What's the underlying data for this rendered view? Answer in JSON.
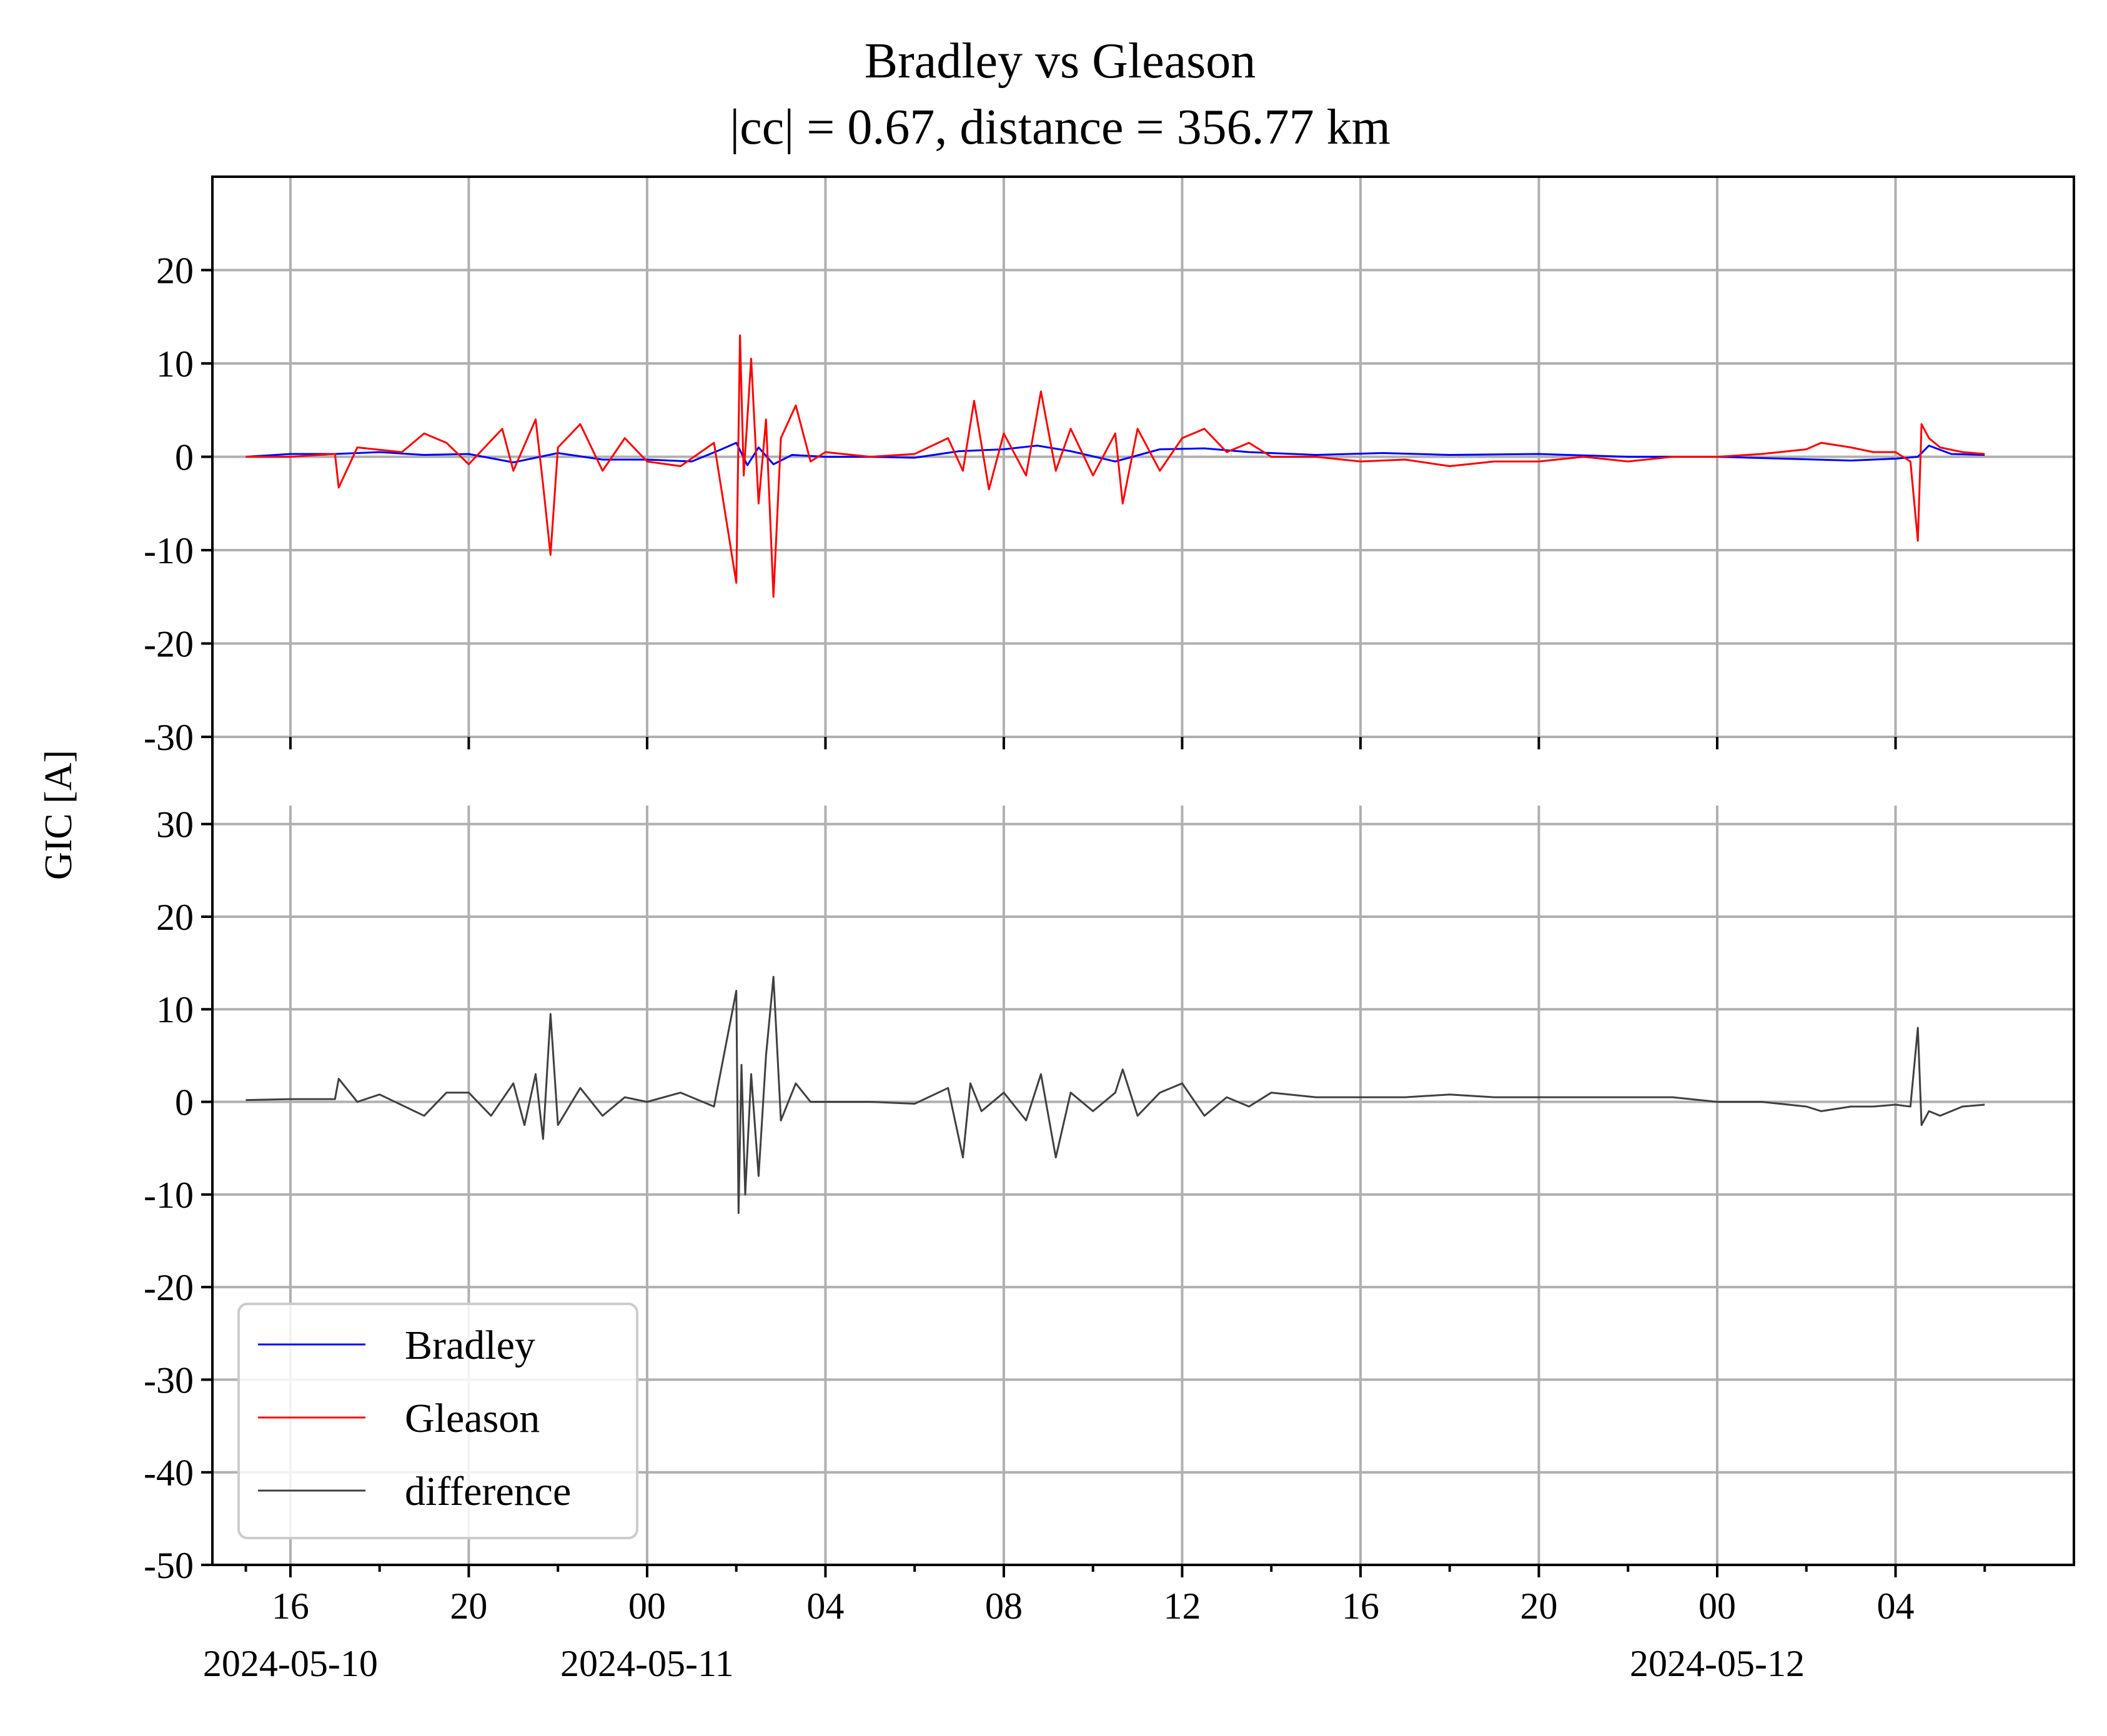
{
  "chart_data": [
    {
      "type": "line",
      "panel": "top",
      "title": "Bradley vs Gleason",
      "subtitle": "|cc| = 0.67, distance = 356.77 km",
      "ylabel": "GIC [A]",
      "ylim": [
        -30,
        30
      ],
      "yticks": [
        20,
        10,
        0,
        -10,
        -20,
        -30
      ],
      "ytick_labels": [
        "20",
        "10",
        "0",
        "-10",
        "-20",
        "-30"
      ],
      "grid": true,
      "series": [
        {
          "name": "Bradley",
          "color": "#0000ff",
          "x": [
            "2024-05-10T15:00",
            "2024-05-10T16:00",
            "2024-05-10T17:00",
            "2024-05-10T18:00",
            "2024-05-10T19:00",
            "2024-05-10T20:00",
            "2024-05-10T21:00",
            "2024-05-10T22:00",
            "2024-05-10T23:00",
            "2024-05-11T00:00",
            "2024-05-11T01:00",
            "2024-05-11T01:40",
            "2024-05-11T02:00",
            "2024-05-11T02:15",
            "2024-05-11T02:30",
            "2024-05-11T02:50",
            "2024-05-11T03:15",
            "2024-05-11T04:00",
            "2024-05-11T05:00",
            "2024-05-11T06:00",
            "2024-05-11T07:00",
            "2024-05-11T08:00",
            "2024-05-11T08:45",
            "2024-05-11T09:30",
            "2024-05-11T10:30",
            "2024-05-11T11:30",
            "2024-05-11T12:30",
            "2024-05-11T13:30",
            "2024-05-11T15:00",
            "2024-05-11T16:30",
            "2024-05-11T18:00",
            "2024-05-11T20:00",
            "2024-05-11T22:00",
            "2024-05-12T00:00",
            "2024-05-12T01:30",
            "2024-05-12T03:00",
            "2024-05-12T04:00",
            "2024-05-12T04:30",
            "2024-05-12T04:45",
            "2024-05-12T05:15",
            "2024-05-12T06:00"
          ],
          "values": [
            0.0,
            0.3,
            0.3,
            0.5,
            0.2,
            0.3,
            -0.6,
            0.4,
            -0.3,
            -0.3,
            -0.5,
            0.8,
            1.5,
            -0.9,
            1.0,
            -0.8,
            0.2,
            0.0,
            0.0,
            -0.1,
            0.6,
            0.8,
            1.2,
            0.6,
            -0.5,
            0.8,
            0.9,
            0.5,
            0.2,
            0.4,
            0.2,
            0.3,
            0.0,
            0.0,
            -0.2,
            -0.4,
            -0.2,
            0.0,
            1.2,
            0.3,
            0.2
          ]
        },
        {
          "name": "Gleason",
          "color": "#ff0000",
          "x": [
            "2024-05-10T15:00",
            "2024-05-10T16:00",
            "2024-05-10T17:00",
            "2024-05-10T17:05",
            "2024-05-10T17:30",
            "2024-05-10T18:30",
            "2024-05-10T19:00",
            "2024-05-10T19:30",
            "2024-05-10T20:00",
            "2024-05-10T20:45",
            "2024-05-10T21:00",
            "2024-05-10T21:30",
            "2024-05-10T21:40",
            "2024-05-10T21:50",
            "2024-05-10T22:00",
            "2024-05-10T22:30",
            "2024-05-10T23:00",
            "2024-05-10T23:30",
            "2024-05-11T00:00",
            "2024-05-11T00:45",
            "2024-05-11T01:30",
            "2024-05-11T02:00",
            "2024-05-11T02:05",
            "2024-05-11T02:10",
            "2024-05-11T02:20",
            "2024-05-11T02:30",
            "2024-05-11T02:40",
            "2024-05-11T02:50",
            "2024-05-11T03:00",
            "2024-05-11T03:20",
            "2024-05-11T03:40",
            "2024-05-11T04:00",
            "2024-05-11T05:00",
            "2024-05-11T06:00",
            "2024-05-11T06:45",
            "2024-05-11T07:05",
            "2024-05-11T07:20",
            "2024-05-11T07:40",
            "2024-05-11T08:00",
            "2024-05-11T08:30",
            "2024-05-11T08:50",
            "2024-05-11T09:10",
            "2024-05-11T09:30",
            "2024-05-11T10:00",
            "2024-05-11T10:30",
            "2024-05-11T10:40",
            "2024-05-11T11:00",
            "2024-05-11T11:30",
            "2024-05-11T12:00",
            "2024-05-11T12:30",
            "2024-05-11T13:00",
            "2024-05-11T13:30",
            "2024-05-11T14:00",
            "2024-05-11T15:00",
            "2024-05-11T16:00",
            "2024-05-11T17:00",
            "2024-05-11T18:00",
            "2024-05-11T19:00",
            "2024-05-11T20:00",
            "2024-05-11T21:00",
            "2024-05-11T22:00",
            "2024-05-11T23:00",
            "2024-05-12T00:00",
            "2024-05-12T01:00",
            "2024-05-12T02:00",
            "2024-05-12T02:20",
            "2024-05-12T03:00",
            "2024-05-12T03:30",
            "2024-05-12T04:00",
            "2024-05-12T04:20",
            "2024-05-12T04:30",
            "2024-05-12T04:35",
            "2024-05-12T04:45",
            "2024-05-12T05:00",
            "2024-05-12T05:30",
            "2024-05-12T06:00"
          ],
          "values": [
            0.0,
            0.0,
            0.3,
            -3.3,
            1.0,
            0.5,
            2.5,
            1.5,
            -0.8,
            3.0,
            -1.5,
            4.0,
            -3.0,
            -10.5,
            1.0,
            3.5,
            -1.5,
            2.0,
            -0.5,
            -1.0,
            1.5,
            -13.5,
            13.0,
            -2.0,
            10.5,
            -5.0,
            4.0,
            -15.0,
            2.0,
            5.5,
            -0.5,
            0.5,
            0.0,
            0.3,
            2.0,
            -1.5,
            6.0,
            -3.5,
            2.5,
            -2.0,
            7.0,
            -1.5,
            3.0,
            -2.0,
            2.5,
            -5.0,
            3.0,
            -1.5,
            2.0,
            3.0,
            0.5,
            1.5,
            0.0,
            0.0,
            -0.5,
            -0.3,
            -1.0,
            -0.5,
            -0.5,
            0.0,
            -0.5,
            0.0,
            0.0,
            0.3,
            0.8,
            1.5,
            1.0,
            0.5,
            0.5,
            -0.5,
            -9.0,
            3.5,
            2.0,
            1.0,
            0.5,
            0.3
          ]
        }
      ]
    },
    {
      "type": "line",
      "panel": "bottom",
      "ylim": [
        -50,
        32
      ],
      "yticks": [
        30,
        20,
        10,
        0,
        -10,
        -20,
        -30,
        -40,
        -50
      ],
      "ytick_labels": [
        "30",
        "20",
        "10",
        "0",
        "-10",
        "-20",
        "-30",
        "-40",
        "-50"
      ],
      "grid": true,
      "legend_position": "lower-left",
      "series": [
        {
          "name": "difference",
          "color": "#404040",
          "x": [
            "2024-05-10T15:00",
            "2024-05-10T16:00",
            "2024-05-10T17:00",
            "2024-05-10T17:05",
            "2024-05-10T17:30",
            "2024-05-10T18:00",
            "2024-05-10T19:00",
            "2024-05-10T19:30",
            "2024-05-10T20:00",
            "2024-05-10T20:30",
            "2024-05-10T21:00",
            "2024-05-10T21:15",
            "2024-05-10T21:30",
            "2024-05-10T21:40",
            "2024-05-10T21:50",
            "2024-05-10T22:00",
            "2024-05-10T22:30",
            "2024-05-10T23:00",
            "2024-05-10T23:30",
            "2024-05-11T00:00",
            "2024-05-11T00:45",
            "2024-05-11T01:30",
            "2024-05-11T02:00",
            "2024-05-11T02:03",
            "2024-05-11T02:07",
            "2024-05-11T02:12",
            "2024-05-11T02:20",
            "2024-05-11T02:30",
            "2024-05-11T02:40",
            "2024-05-11T02:50",
            "2024-05-11T03:00",
            "2024-05-11T03:20",
            "2024-05-11T03:40",
            "2024-05-11T04:00",
            "2024-05-11T05:00",
            "2024-05-11T06:00",
            "2024-05-11T06:45",
            "2024-05-11T07:05",
            "2024-05-11T07:15",
            "2024-05-11T07:30",
            "2024-05-11T08:00",
            "2024-05-11T08:30",
            "2024-05-11T08:50",
            "2024-05-11T09:10",
            "2024-05-11T09:30",
            "2024-05-11T10:00",
            "2024-05-11T10:30",
            "2024-05-11T10:40",
            "2024-05-11T11:00",
            "2024-05-11T11:30",
            "2024-05-11T12:00",
            "2024-05-11T12:30",
            "2024-05-11T13:00",
            "2024-05-11T13:30",
            "2024-05-11T14:00",
            "2024-05-11T15:00",
            "2024-05-11T16:00",
            "2024-05-11T17:00",
            "2024-05-11T18:00",
            "2024-05-11T19:00",
            "2024-05-11T20:00",
            "2024-05-11T21:00",
            "2024-05-11T22:00",
            "2024-05-11T23:00",
            "2024-05-12T00:00",
            "2024-05-12T01:00",
            "2024-05-12T02:00",
            "2024-05-12T02:20",
            "2024-05-12T03:00",
            "2024-05-12T03:30",
            "2024-05-12T04:00",
            "2024-05-12T04:20",
            "2024-05-12T04:30",
            "2024-05-12T04:35",
            "2024-05-12T04:45",
            "2024-05-12T05:00",
            "2024-05-12T05:30",
            "2024-05-12T06:00"
          ],
          "values": [
            0.2,
            0.3,
            0.3,
            2.5,
            0.0,
            0.8,
            -1.5,
            1.0,
            1.0,
            -1.5,
            2.0,
            -2.5,
            3.0,
            -4.0,
            9.5,
            -2.5,
            1.5,
            -1.5,
            0.5,
            0.0,
            1.0,
            -0.5,
            12.0,
            -12.0,
            4.0,
            -10.0,
            3.0,
            -8.0,
            5.0,
            13.5,
            -2.0,
            2.0,
            0.0,
            0.0,
            0.0,
            -0.2,
            1.5,
            -6.0,
            2.0,
            -1.0,
            1.0,
            -2.0,
            3.0,
            -6.0,
            1.0,
            -1.0,
            1.0,
            3.5,
            -1.5,
            1.0,
            2.0,
            -1.5,
            0.5,
            -0.5,
            1.0,
            0.5,
            0.5,
            0.5,
            0.8,
            0.5,
            0.5,
            0.5,
            0.5,
            0.5,
            0.0,
            0.0,
            -0.5,
            -1.0,
            -0.5,
            -0.5,
            -0.3,
            -0.5,
            8.0,
            -2.5,
            -1.0,
            -1.5,
            -0.5,
            -0.3
          ]
        }
      ]
    }
  ],
  "xaxis": {
    "start": "2024-05-10T14:15",
    "end": "2024-05-12T08:00",
    "ticks": [
      {
        "t": "2024-05-10T16:00",
        "label": "16"
      },
      {
        "t": "2024-05-10T20:00",
        "label": "20"
      },
      {
        "t": "2024-05-11T00:00",
        "label": "00"
      },
      {
        "t": "2024-05-11T04:00",
        "label": "04"
      },
      {
        "t": "2024-05-11T08:00",
        "label": "08"
      },
      {
        "t": "2024-05-11T12:00",
        "label": "12"
      },
      {
        "t": "2024-05-11T16:00",
        "label": "16"
      },
      {
        "t": "2024-05-11T20:00",
        "label": "20"
      },
      {
        "t": "2024-05-12T00:00",
        "label": "00"
      },
      {
        "t": "2024-05-12T04:00",
        "label": "04"
      }
    ],
    "minor_ticks": [
      "2024-05-10T15:00",
      "2024-05-10T18:00",
      "2024-05-10T22:00",
      "2024-05-11T02:00",
      "2024-05-11T06:00",
      "2024-05-11T10:00",
      "2024-05-11T14:00",
      "2024-05-11T18:00",
      "2024-05-11T22:00",
      "2024-05-12T02:00",
      "2024-05-12T06:00"
    ],
    "date_labels": [
      {
        "t": "2024-05-10T16:00",
        "label": "2024-05-10"
      },
      {
        "t": "2024-05-11T00:00",
        "label": "2024-05-11"
      },
      {
        "t": "2024-05-12T00:00",
        "label": "2024-05-12"
      }
    ]
  },
  "legend": {
    "entries": [
      {
        "label": "Bradley",
        "color": "#0000ff"
      },
      {
        "label": "Gleason",
        "color": "#ff0000"
      },
      {
        "label": "difference",
        "color": "#404040"
      }
    ]
  }
}
